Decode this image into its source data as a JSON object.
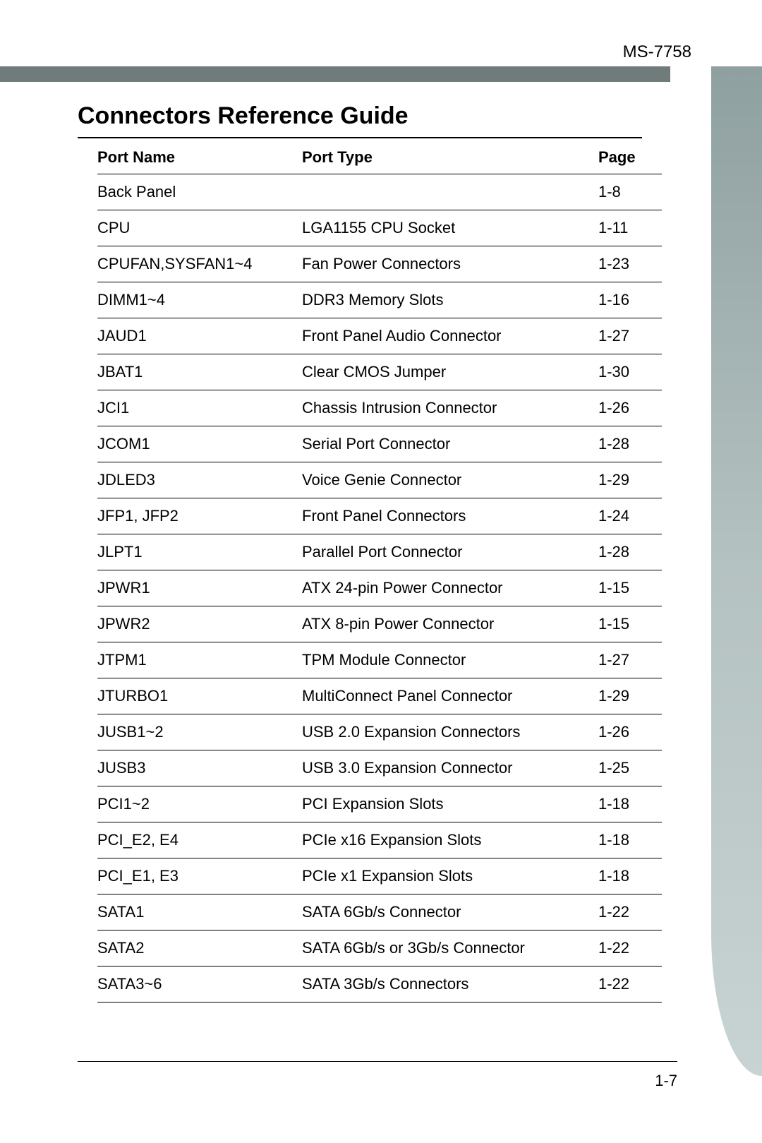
{
  "header": {
    "model": "MS-7758",
    "bar_color": "#707c7c",
    "tab_gradient_start": "#8fa0a0",
    "tab_gradient_end": "#c8d3d3"
  },
  "title": "Connectors Reference Guide",
  "table": {
    "columns": [
      "Port Name",
      "Port Type",
      "Page"
    ],
    "rows": [
      {
        "name": "Back Panel",
        "type": "",
        "page": "1-8"
      },
      {
        "name": "CPU",
        "type": "LGA1155 CPU Socket",
        "page": "1-11"
      },
      {
        "name": "CPUFAN,SYSFAN1~4",
        "type": "Fan Power Connectors",
        "page": "1-23"
      },
      {
        "name": "DIMM1~4",
        "type": "DDR3 Memory Slots",
        "page": "1-16"
      },
      {
        "name": "JAUD1",
        "type": "Front Panel Audio Connector",
        "page": "1-27"
      },
      {
        "name": "JBAT1",
        "type": "Clear CMOS Jumper",
        "page": "1-30"
      },
      {
        "name": "JCI1",
        "type": "Chassis Intrusion Connector",
        "page": "1-26"
      },
      {
        "name": "JCOM1",
        "type": "Serial Port Connector",
        "page": "1-28"
      },
      {
        "name": "JDLED3",
        "type": "Voice Genie Connector",
        "page": "1-29"
      },
      {
        "name": "JFP1, JFP2",
        "type": "Front Panel Connectors",
        "page": "1-24"
      },
      {
        "name": "JLPT1",
        "type": "Parallel Port Connector",
        "page": "1-28"
      },
      {
        "name": "JPWR1",
        "type": "ATX 24-pin Power Connector",
        "page": "1-15"
      },
      {
        "name": "JPWR2",
        "type": "ATX 8-pin Power Connector",
        "page": "1-15"
      },
      {
        "name": "JTPM1",
        "type": "TPM Module Connector",
        "page": "1-27"
      },
      {
        "name": "JTURBO1",
        "type": "MultiConnect Panel Connector",
        "page": "1-29"
      },
      {
        "name": "JUSB1~2",
        "type": "USB 2.0 Expansion Connectors",
        "page": "1-26"
      },
      {
        "name": "JUSB3",
        "type": "USB 3.0 Expansion Connector",
        "page": "1-25"
      },
      {
        "name": "PCI1~2",
        "type": "PCI Expansion Slots",
        "page": "1-18"
      },
      {
        "name": "PCI_E2, E4",
        "type": "PCIe x16 Expansion Slots",
        "page": "1-18"
      },
      {
        "name": "PCI_E1, E3",
        "type": "PCIe x1 Expansion Slots",
        "page": "1-18"
      },
      {
        "name": "SATA1",
        "type": "SATA 6Gb/s Connector",
        "page": "1-22"
      },
      {
        "name": "SATA2",
        "type": "SATA 6Gb/s or 3Gb/s Connector",
        "page": "1-22"
      },
      {
        "name": "SATA3~6",
        "type": "SATA 3Gb/s Connectors",
        "page": "1-22"
      }
    ]
  },
  "footer": {
    "page_number": "1-7"
  },
  "style": {
    "background_color": "#ffffff",
    "title_fontsize": 34,
    "header_fontsize": 24,
    "body_fontsize": 22,
    "text_color": "#000000",
    "rule_color": "#000000"
  }
}
